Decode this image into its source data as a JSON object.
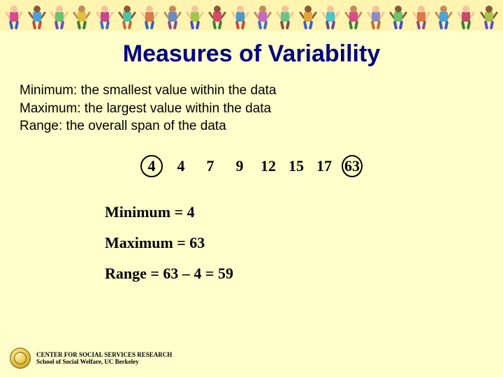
{
  "colors": {
    "page_bg": "#ffffcc",
    "title_color": "#000080",
    "text_color": "#000000",
    "circle_color": "#000000"
  },
  "title": "Measures of Variability",
  "definitions": [
    "Minimum: the smallest value within the data",
    "Maximum: the largest value within the data",
    "Range: the overall span of the data"
  ],
  "dataset": {
    "values": [
      "4",
      "4",
      "7",
      "9",
      "12",
      "15",
      "17",
      "63"
    ],
    "circled_indices": [
      0,
      7
    ],
    "font_family": "Times New Roman",
    "font_size_pt": 22,
    "font_weight": "bold"
  },
  "results": [
    "Minimum = 4",
    "Maximum = 63",
    "Range = 63 – 4 = 59"
  ],
  "footer": {
    "line1": "CENTER FOR SOCIAL SERVICES RESEARCH",
    "line2": "School of Social Welfare, UC Berkeley"
  },
  "banner_kids": [
    {
      "skin": "#f2c49b",
      "shirt": "#d94a8c",
      "pants": "#3a5fc4"
    },
    {
      "skin": "#8a5a36",
      "shirt": "#4aa3d9",
      "pants": "#c44a3a"
    },
    {
      "skin": "#f2c49b",
      "shirt": "#6ac46a",
      "pants": "#6a4ac4"
    },
    {
      "skin": "#c48a5a",
      "shirt": "#e0c23c",
      "pants": "#3a813a"
    },
    {
      "skin": "#f2c49b",
      "shirt": "#c44a8c",
      "pants": "#4a6ac4"
    },
    {
      "skin": "#8a5a36",
      "shirt": "#4ac4a3",
      "pants": "#c46a3a"
    },
    {
      "skin": "#f2c49b",
      "shirt": "#d97a4a",
      "pants": "#3a5fc4"
    },
    {
      "skin": "#c48a5a",
      "shirt": "#6a8ac4",
      "pants": "#8c4a8c"
    },
    {
      "skin": "#f2c49b",
      "shirt": "#a3c44a",
      "pants": "#4a4ac4"
    },
    {
      "skin": "#8a5a36",
      "shirt": "#d94a6a",
      "pants": "#3a813a"
    },
    {
      "skin": "#f2c49b",
      "shirt": "#4a9ac4",
      "pants": "#c44a3a"
    },
    {
      "skin": "#c48a5a",
      "shirt": "#c46ac4",
      "pants": "#4a6ac4"
    },
    {
      "skin": "#f2c49b",
      "shirt": "#6ac48a",
      "pants": "#8c4a4a"
    },
    {
      "skin": "#8a5a36",
      "shirt": "#e0a33c",
      "pants": "#3a5fc4"
    },
    {
      "skin": "#f2c49b",
      "shirt": "#4ac4c4",
      "pants": "#6a4a8c"
    },
    {
      "skin": "#c48a5a",
      "shirt": "#d94a8c",
      "pants": "#3a813a"
    },
    {
      "skin": "#f2c49b",
      "shirt": "#8c8cc4",
      "pants": "#c46a3a"
    },
    {
      "skin": "#8a5a36",
      "shirt": "#6ac46a",
      "pants": "#4a4ac4"
    },
    {
      "skin": "#f2c49b",
      "shirt": "#d97a4a",
      "pants": "#8c4a8c"
    },
    {
      "skin": "#c48a5a",
      "shirt": "#4aa3d9",
      "pants": "#3a5fc4"
    },
    {
      "skin": "#f2c49b",
      "shirt": "#c44a6a",
      "pants": "#3a813a"
    },
    {
      "skin": "#8a5a36",
      "shirt": "#a3c44a",
      "pants": "#6a4ac4"
    }
  ]
}
